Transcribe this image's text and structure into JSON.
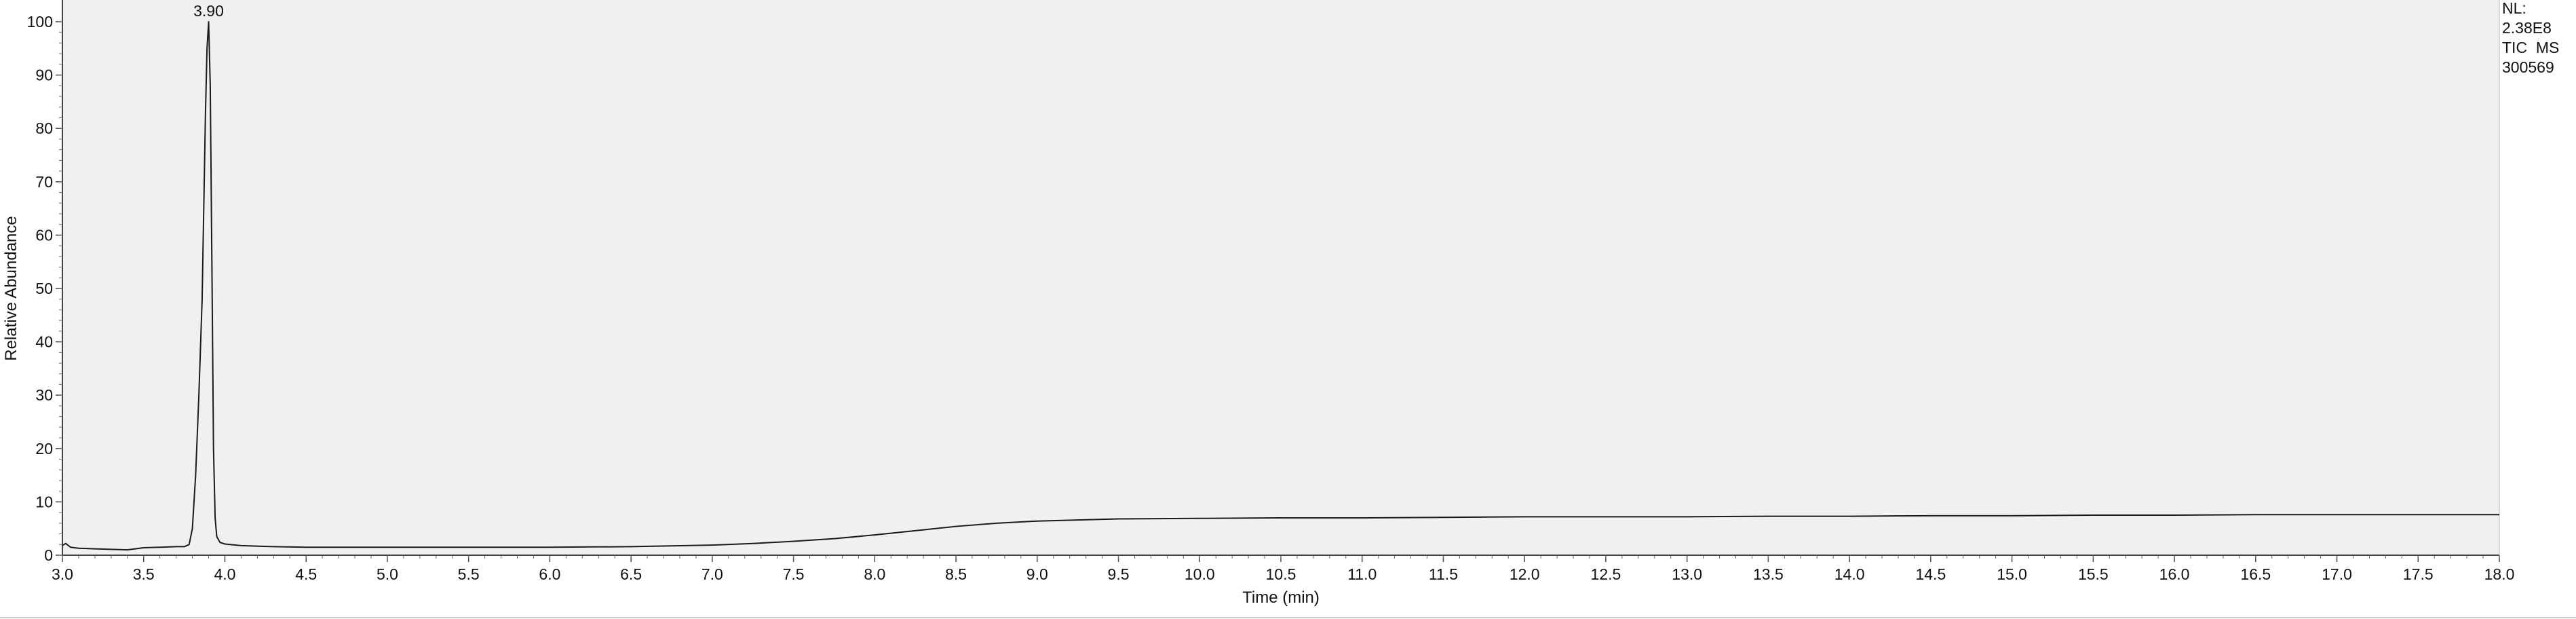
{
  "chart_data": {
    "type": "line",
    "xlabel": "Time (min)",
    "ylabel": "Relative Abundance",
    "xlim": [
      3.0,
      18.0
    ],
    "ylim": [
      0,
      100
    ],
    "x_ticks": [
      "3.0",
      "3.5",
      "4.0",
      "4.5",
      "5.0",
      "5.5",
      "6.0",
      "6.5",
      "7.0",
      "7.5",
      "8.0",
      "8.5",
      "9.0",
      "9.5",
      "10.0",
      "10.5",
      "11.0",
      "11.5",
      "12.0",
      "12.5",
      "13.0",
      "13.5",
      "14.0",
      "14.5",
      "15.0",
      "15.5",
      "16.0",
      "16.5",
      "17.0",
      "17.5",
      "18.0"
    ],
    "y_ticks": [
      "0",
      "10",
      "20",
      "30",
      "40",
      "50",
      "60",
      "70",
      "80",
      "90",
      "100"
    ],
    "grid": false,
    "annotations": [
      {
        "x": 3.9,
        "y": 100,
        "text": "3.90"
      }
    ],
    "info_box": [
      "NL:",
      "2.38E8",
      "TIC  MS",
      "300569"
    ],
    "series": [
      {
        "color": "#1a1a1a",
        "x": [
          3.0,
          3.02,
          3.05,
          3.1,
          3.2,
          3.3,
          3.4,
          3.5,
          3.6,
          3.7,
          3.75,
          3.78,
          3.8,
          3.82,
          3.84,
          3.86,
          3.87,
          3.88,
          3.89,
          3.9,
          3.91,
          3.92,
          3.93,
          3.94,
          3.95,
          3.97,
          4.0,
          4.1,
          4.3,
          4.5,
          5.0,
          5.5,
          6.0,
          6.5,
          7.0,
          7.25,
          7.5,
          7.75,
          8.0,
          8.25,
          8.5,
          8.75,
          9.0,
          9.25,
          9.5,
          10.0,
          10.5,
          11.0,
          11.5,
          12.0,
          12.5,
          13.0,
          13.5,
          14.0,
          14.5,
          15.0,
          15.5,
          16.0,
          16.5,
          17.0,
          17.5,
          18.0
        ],
        "y": [
          1.8,
          2.2,
          1.5,
          1.3,
          1.2,
          1.1,
          1.0,
          1.4,
          1.5,
          1.6,
          1.6,
          2.0,
          5.0,
          15.0,
          30.0,
          48.0,
          65.0,
          82.0,
          95.0,
          100,
          88.0,
          55.0,
          20.0,
          7.0,
          3.5,
          2.4,
          2.1,
          1.8,
          1.6,
          1.5,
          1.5,
          1.5,
          1.5,
          1.6,
          1.9,
          2.2,
          2.6,
          3.1,
          3.8,
          4.6,
          5.4,
          6.0,
          6.4,
          6.6,
          6.8,
          6.9,
          7.0,
          7.0,
          7.1,
          7.2,
          7.2,
          7.2,
          7.3,
          7.3,
          7.4,
          7.4,
          7.5,
          7.5,
          7.6,
          7.6,
          7.6,
          7.6
        ]
      }
    ]
  }
}
